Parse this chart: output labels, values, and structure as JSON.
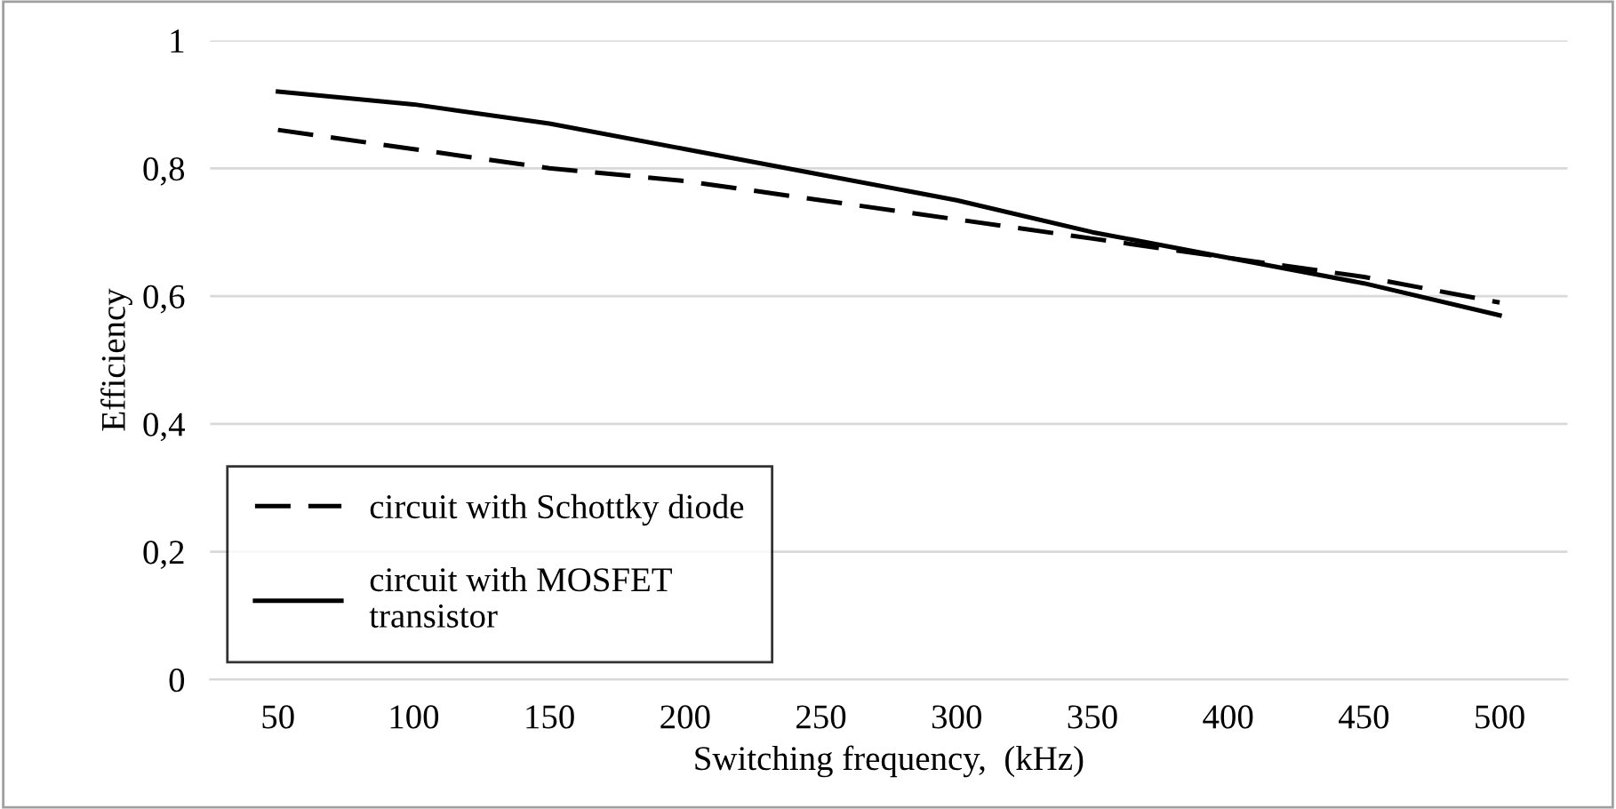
{
  "chart_data": {
    "type": "line",
    "xlabel": "Switching frequency,  (kHz)",
    "ylabel": "Efficiency",
    "categories": [
      "50",
      "100",
      "150",
      "200",
      "250",
      "300",
      "350",
      "400",
      "450",
      "500"
    ],
    "series": [
      {
        "name": "circuit with Schottky diode",
        "color": "#000000",
        "line_style": "dashed",
        "values": [
          0.86,
          0.83,
          0.8,
          0.78,
          0.75,
          0.72,
          0.69,
          0.66,
          0.63,
          0.59
        ]
      },
      {
        "name": "circuit with MOSFET\ntransistor",
        "color": "#000000",
        "line_style": "solid",
        "values": [
          0.92,
          0.9,
          0.87,
          0.83,
          0.79,
          0.75,
          0.7,
          0.66,
          0.62,
          0.57
        ]
      }
    ],
    "ylim": [
      0,
      1
    ],
    "yticks": [
      0,
      {
        "value": 0.2,
        "label": "0,2"
      },
      {
        "value": 0.4,
        "label": "0,4"
      },
      {
        "value": 0.6,
        "label": "0,6"
      },
      {
        "value": 0.8,
        "label": "0,8"
      },
      1
    ],
    "grid": "y",
    "legend": "bottom left",
    "marker": "none"
  }
}
